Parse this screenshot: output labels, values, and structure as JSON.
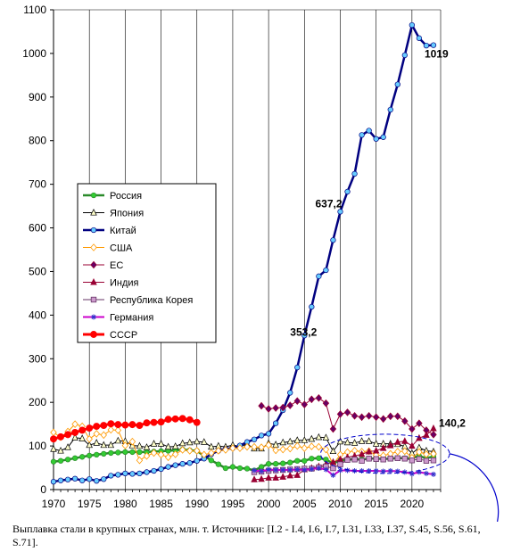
{
  "caption": "Выплавка стали в крупных странах, млн. т. Источники: [I.2 - I.4, I.6, I.7, I.31, I.33, I.37, S.45, S.56, S.61, S.71].",
  "chart_data": {
    "type": "line",
    "title": "",
    "xlabel": "",
    "ylabel": "",
    "xlim": [
      1970,
      2024
    ],
    "ylim": [
      0,
      1100
    ],
    "x_ticks": [
      1970,
      1975,
      1980,
      1985,
      1990,
      1995,
      2000,
      2005,
      2010,
      2015,
      2020
    ],
    "y_ticks": [
      0,
      100,
      200,
      300,
      400,
      500,
      600,
      700,
      800,
      900,
      1000,
      1100
    ],
    "grid": "vertical",
    "legend_position": "center-left",
    "series": [
      {
        "name": "Россия",
        "color": "#2a8a2a",
        "marker_fill": "#33cc33",
        "marker": "circle",
        "line_width": 2.5,
        "x": [
          1970,
          1971,
          1972,
          1973,
          1974,
          1975,
          1976,
          1977,
          1978,
          1979,
          1980,
          1981,
          1982,
          1983,
          1984,
          1985,
          1986,
          1987,
          1988,
          1989,
          1990,
          1991,
          1992,
          1993,
          1994,
          1995,
          1996,
          1997,
          1998,
          1999,
          2000,
          2001,
          2002,
          2003,
          2004,
          2005,
          2006,
          2007,
          2008,
          2009,
          2010,
          2011,
          2012,
          2013,
          2014,
          2015,
          2016,
          2017,
          2018,
          2019,
          2020,
          2021,
          2022,
          2023
        ],
        "y": [
          64,
          66,
          69,
          72,
          75,
          78,
          80,
          82,
          84,
          85,
          86,
          86,
          86,
          86,
          87,
          88,
          89,
          90,
          92,
          90,
          89,
          77,
          67,
          58,
          49,
          52,
          49,
          48,
          44,
          52,
          59,
          59,
          60,
          62,
          66,
          66,
          71,
          72,
          69,
          60,
          67,
          68,
          70,
          69,
          71,
          71,
          70,
          71,
          72,
          72,
          72,
          77,
          72,
          76
        ]
      },
      {
        "name": "Япония",
        "color": "#000000",
        "marker_fill": "#ffffcc",
        "marker": "triangle",
        "line_width": 1,
        "x": [
          1970,
          1971,
          1972,
          1973,
          1974,
          1975,
          1976,
          1977,
          1978,
          1979,
          1980,
          1981,
          1982,
          1983,
          1984,
          1985,
          1986,
          1987,
          1988,
          1989,
          1990,
          1991,
          1992,
          1993,
          1994,
          1995,
          1996,
          1997,
          1998,
          1999,
          2000,
          2001,
          2002,
          2003,
          2004,
          2005,
          2006,
          2007,
          2008,
          2009,
          2010,
          2011,
          2012,
          2013,
          2014,
          2015,
          2016,
          2017,
          2018,
          2019,
          2020,
          2021,
          2022,
          2023
        ],
        "y": [
          93,
          89,
          97,
          119,
          117,
          102,
          107,
          102,
          102,
          112,
          111,
          101,
          100,
          97,
          105,
          105,
          98,
          99,
          106,
          108,
          110,
          109,
          98,
          100,
          98,
          102,
          99,
          104,
          94,
          94,
          106,
          103,
          108,
          110,
          113,
          113,
          116,
          120,
          119,
          88,
          110,
          108,
          107,
          111,
          111,
          105,
          105,
          105,
          104,
          99,
          83,
          96,
          89,
          87
        ]
      },
      {
        "name": "Китай",
        "color": "#000080",
        "marker_fill": "#66ccff",
        "marker": "circle",
        "line_width": 2.5,
        "x": [
          1970,
          1971,
          1972,
          1973,
          1974,
          1975,
          1976,
          1977,
          1978,
          1979,
          1980,
          1981,
          1982,
          1983,
          1984,
          1985,
          1986,
          1987,
          1988,
          1989,
          1990,
          1991,
          1992,
          1993,
          1994,
          1995,
          1996,
          1997,
          1998,
          1999,
          2000,
          2001,
          2002,
          2003,
          2004,
          2005,
          2006,
          2007,
          2008,
          2009,
          2010,
          2011,
          2012,
          2013,
          2014,
          2015,
          2016,
          2017,
          2018,
          2019,
          2020,
          2021,
          2022,
          2023
        ],
        "y": [
          18,
          21,
          23,
          25,
          21,
          24,
          20,
          24,
          32,
          34,
          37,
          36,
          37,
          40,
          43,
          47,
          52,
          56,
          59,
          61,
          66,
          71,
          81,
          89,
          93,
          95,
          101,
          109,
          115,
          124,
          128,
          152,
          182,
          222,
          280,
          353.2,
          419,
          489,
          503,
          572,
          637.2,
          683,
          724,
          813,
          823,
          804,
          808,
          871,
          929,
          996,
          1065,
          1035,
          1018,
          1019
        ]
      },
      {
        "name": "США",
        "color": "#ff9900",
        "marker_fill": "#ffffff",
        "marker": "diamond",
        "line_width": 1,
        "x": [
          1970,
          1971,
          1972,
          1973,
          1974,
          1975,
          1976,
          1977,
          1978,
          1979,
          1980,
          1981,
          1982,
          1983,
          1984,
          1985,
          1986,
          1987,
          1988,
          1989,
          1990,
          1991,
          1992,
          1993,
          1994,
          1995,
          1996,
          1997,
          1998,
          1999,
          2000,
          2001,
          2002,
          2003,
          2004,
          2005,
          2006,
          2007,
          2008,
          2009,
          2010,
          2011,
          2012,
          2013,
          2014,
          2015,
          2016,
          2017,
          2018,
          2019,
          2020,
          2021,
          2022,
          2023
        ],
        "y": [
          131,
          120,
          133,
          150,
          145,
          116,
          128,
          125,
          137,
          136,
          101,
          110,
          67,
          77,
          84,
          80,
          74,
          81,
          91,
          89,
          89,
          80,
          84,
          89,
          91,
          95,
          95,
          98,
          98,
          97,
          102,
          90,
          92,
          94,
          100,
          95,
          99,
          98,
          92,
          58,
          80,
          86,
          89,
          87,
          88,
          79,
          78,
          82,
          87,
          88,
          73,
          86,
          81,
          82
        ]
      },
      {
        "name": "ЕС",
        "color": "#990033",
        "marker_fill": "#660066",
        "marker": "diamond",
        "line_width": 1,
        "x": [
          1999,
          2000,
          2001,
          2002,
          2003,
          2004,
          2005,
          2006,
          2007,
          2008,
          2009,
          2010,
          2011,
          2012,
          2013,
          2014,
          2015,
          2016,
          2017,
          2018,
          2019,
          2020,
          2021,
          2022,
          2023
        ],
        "y": [
          192,
          185,
          187,
          188,
          193,
          203,
          195,
          207,
          210,
          198,
          139,
          173,
          177,
          169,
          166,
          169,
          166,
          162,
          168,
          168,
          157,
          139,
          152,
          136,
          126
        ]
      },
      {
        "name": "Индия",
        "color": "#990033",
        "marker_fill": "#990033",
        "marker": "triangle",
        "line_width": 1,
        "x": [
          1998,
          1999,
          2000,
          2001,
          2002,
          2003,
          2004,
          2005,
          2006,
          2007,
          2008,
          2009,
          2010,
          2011,
          2012,
          2013,
          2014,
          2015,
          2016,
          2017,
          2018,
          2019,
          2020,
          2021,
          2022,
          2023
        ],
        "y": [
          23,
          24,
          27,
          27,
          29,
          32,
          33,
          46,
          49,
          53,
          58,
          63,
          69,
          74,
          77,
          81,
          87,
          89,
          95,
          101,
          109,
          111,
          100,
          118,
          125,
          140.2
        ]
      },
      {
        "name": "Республика Корея",
        "color": "#663366",
        "marker_fill": "#cc99cc",
        "marker": "square",
        "line_width": 1,
        "x": [
          1998,
          1999,
          2000,
          2001,
          2002,
          2003,
          2004,
          2005,
          2006,
          2007,
          2008,
          2009,
          2010,
          2011,
          2012,
          2013,
          2014,
          2015,
          2016,
          2017,
          2018,
          2019,
          2020,
          2021,
          2022,
          2023
        ],
        "y": [
          40,
          41,
          43,
          44,
          45,
          46,
          47,
          48,
          48,
          51,
          53,
          49,
          58,
          68,
          69,
          66,
          71,
          70,
          69,
          71,
          72,
          71,
          67,
          70,
          66,
          67
        ]
      },
      {
        "name": "Германия",
        "color": "#cc00cc",
        "marker_fill": "#3333cc",
        "marker": "star",
        "line_width": 2,
        "x": [
          1998,
          1999,
          2000,
          2001,
          2002,
          2003,
          2004,
          2005,
          2006,
          2007,
          2008,
          2009,
          2010,
          2011,
          2012,
          2013,
          2014,
          2015,
          2016,
          2017,
          2018,
          2019,
          2020,
          2021,
          2022,
          2023
        ],
        "y": [
          44,
          42,
          46,
          45,
          45,
          45,
          46,
          45,
          47,
          49,
          46,
          33,
          44,
          44,
          43,
          43,
          43,
          43,
          42,
          43,
          42,
          40,
          36,
          40,
          37,
          35
        ]
      },
      {
        "name": "СССР",
        "color": "#ff0000",
        "marker_fill": "#ff0000",
        "marker": "circle",
        "line_width": 3,
        "x": [
          1970,
          1971,
          1972,
          1973,
          1974,
          1975,
          1976,
          1977,
          1978,
          1979,
          1980,
          1981,
          1982,
          1983,
          1984,
          1985,
          1986,
          1987,
          1988,
          1989,
          1990
        ],
        "y": [
          116,
          121,
          126,
          131,
          136,
          141,
          145,
          147,
          151,
          149,
          148,
          149,
          147,
          153,
          154,
          155,
          161,
          162,
          163,
          160,
          154
        ]
      }
    ],
    "annotations": [
      {
        "text": "1019",
        "x": 2023,
        "y": 1019
      },
      {
        "text": "637,2",
        "x": 2010,
        "y": 637.2
      },
      {
        "text": "353,2",
        "x": 2005,
        "y": 353.2
      },
      {
        "text": "140,2",
        "x": 2023,
        "y": 140.2
      }
    ]
  }
}
